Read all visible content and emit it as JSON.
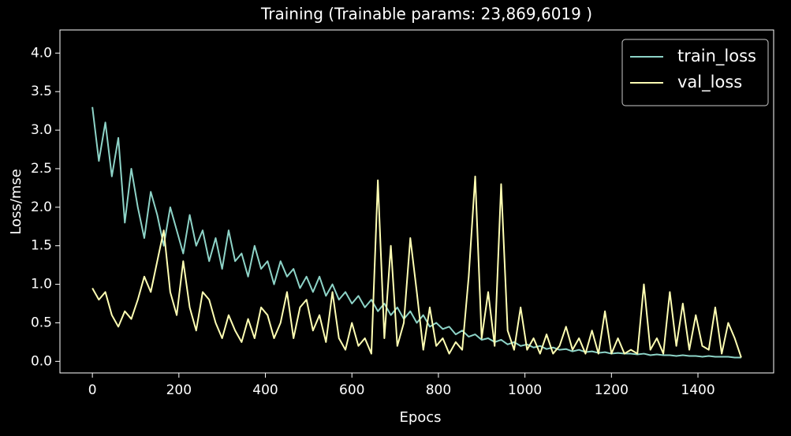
{
  "chart_data": {
    "type": "line",
    "title": "Training (Trainable params: 23,869,6019 )",
    "x_label": "Epocs",
    "y_label": "Loss/mse",
    "x": [
      0,
      15,
      30,
      45,
      60,
      75,
      90,
      105,
      120,
      135,
      150,
      165,
      180,
      195,
      210,
      225,
      240,
      255,
      270,
      285,
      300,
      315,
      330,
      345,
      360,
      375,
      390,
      405,
      420,
      435,
      450,
      465,
      480,
      495,
      510,
      525,
      540,
      555,
      570,
      585,
      600,
      615,
      630,
      645,
      660,
      675,
      690,
      705,
      720,
      735,
      750,
      765,
      780,
      795,
      810,
      825,
      840,
      855,
      870,
      885,
      900,
      915,
      930,
      945,
      960,
      975,
      990,
      1005,
      1020,
      1035,
      1050,
      1065,
      1080,
      1095,
      1110,
      1125,
      1140,
      1155,
      1170,
      1185,
      1200,
      1215,
      1230,
      1245,
      1260,
      1275,
      1290,
      1305,
      1320,
      1335,
      1350,
      1365,
      1380,
      1395,
      1410,
      1425,
      1440,
      1455,
      1470,
      1485,
      1500
    ],
    "series": [
      {
        "name": "train_loss",
        "color": "#8dd3c7",
        "values": [
          3.3,
          2.6,
          3.1,
          2.4,
          2.9,
          1.8,
          2.5,
          2.0,
          1.6,
          2.2,
          1.9,
          1.5,
          2.0,
          1.7,
          1.4,
          1.9,
          1.5,
          1.7,
          1.3,
          1.6,
          1.2,
          1.7,
          1.3,
          1.4,
          1.1,
          1.5,
          1.2,
          1.3,
          1.0,
          1.3,
          1.1,
          1.2,
          0.95,
          1.1,
          0.9,
          1.1,
          0.85,
          1.0,
          0.8,
          0.9,
          0.75,
          0.85,
          0.7,
          0.8,
          0.65,
          0.75,
          0.6,
          0.7,
          0.55,
          0.65,
          0.5,
          0.6,
          0.45,
          0.5,
          0.42,
          0.45,
          0.35,
          0.4,
          0.32,
          0.35,
          0.28,
          0.3,
          0.25,
          0.28,
          0.22,
          0.25,
          0.2,
          0.22,
          0.18,
          0.2,
          0.16,
          0.18,
          0.15,
          0.16,
          0.13,
          0.15,
          0.12,
          0.13,
          0.11,
          0.12,
          0.1,
          0.11,
          0.1,
          0.1,
          0.09,
          0.1,
          0.08,
          0.09,
          0.08,
          0.08,
          0.07,
          0.08,
          0.07,
          0.07,
          0.06,
          0.07,
          0.06,
          0.06,
          0.06,
          0.05,
          0.05
        ]
      },
      {
        "name": "val_loss",
        "color": "#ffffb3",
        "values": [
          0.95,
          0.8,
          0.9,
          0.6,
          0.45,
          0.65,
          0.55,
          0.8,
          1.1,
          0.9,
          1.3,
          1.7,
          0.9,
          0.6,
          1.3,
          0.7,
          0.4,
          0.9,
          0.8,
          0.5,
          0.3,
          0.6,
          0.4,
          0.25,
          0.55,
          0.3,
          0.7,
          0.6,
          0.3,
          0.5,
          0.9,
          0.3,
          0.7,
          0.8,
          0.4,
          0.6,
          0.25,
          0.9,
          0.3,
          0.15,
          0.5,
          0.2,
          0.3,
          0.1,
          2.35,
          0.3,
          1.5,
          0.2,
          0.5,
          1.6,
          0.9,
          0.15,
          0.7,
          0.2,
          0.3,
          0.1,
          0.25,
          0.15,
          1.1,
          2.4,
          0.3,
          0.9,
          0.2,
          2.3,
          0.4,
          0.15,
          0.7,
          0.15,
          0.3,
          0.1,
          0.35,
          0.1,
          0.2,
          0.45,
          0.15,
          0.3,
          0.1,
          0.4,
          0.1,
          0.65,
          0.1,
          0.3,
          0.1,
          0.15,
          0.1,
          1.0,
          0.15,
          0.3,
          0.1,
          0.9,
          0.2,
          0.75,
          0.15,
          0.6,
          0.2,
          0.15,
          0.7,
          0.1,
          0.5,
          0.3,
          0.05
        ]
      }
    ],
    "xlim": [
      -75,
      1575
    ],
    "ylim": [
      -0.15,
      4.3
    ],
    "xticks": [
      0,
      200,
      400,
      600,
      800,
      1000,
      1200,
      1400
    ],
    "yticks": [
      {
        "value": 0,
        "label": "0.0"
      },
      0.5,
      {
        "value": 1,
        "label": "1.0"
      },
      1.5,
      {
        "value": 2,
        "label": "2.0"
      },
      2.5,
      {
        "value": 3,
        "label": "3.0"
      },
      3.5,
      {
        "value": 4,
        "label": "4.0"
      }
    ],
    "legend_position": "upper right",
    "grid": false
  }
}
